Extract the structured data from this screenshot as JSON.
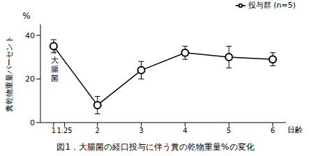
{
  "chart_data": {
    "type": "line",
    "title": "図1．大腸菌の経口投与に伴う糞の乾物重量%の変化",
    "x_label": "日齢",
    "y_label": "糞乾物重量パーセント",
    "x": [
      1,
      2,
      3,
      4,
      5,
      6
    ],
    "series": [
      {
        "name": "投与群 (n=5)",
        "color": "#000000",
        "marker": "circle",
        "values": [
          35,
          8,
          24,
          32,
          30,
          29
        ],
        "errors": [
          3,
          4,
          4,
          3,
          5,
          3
        ]
      }
    ],
    "xlim": [
      0.7,
      6.3
    ],
    "xticks": [
      1,
      1.25,
      2,
      3,
      4,
      5,
      6
    ],
    "ylim": [
      0,
      45
    ],
    "yticks": [
      0,
      20,
      40
    ],
    "grid": false,
    "legend": "top-right",
    "annotations": [
      {
        "text": "%"
      },
      {
        "text": "↑大腸菌",
        "x": 1
      }
    ]
  }
}
